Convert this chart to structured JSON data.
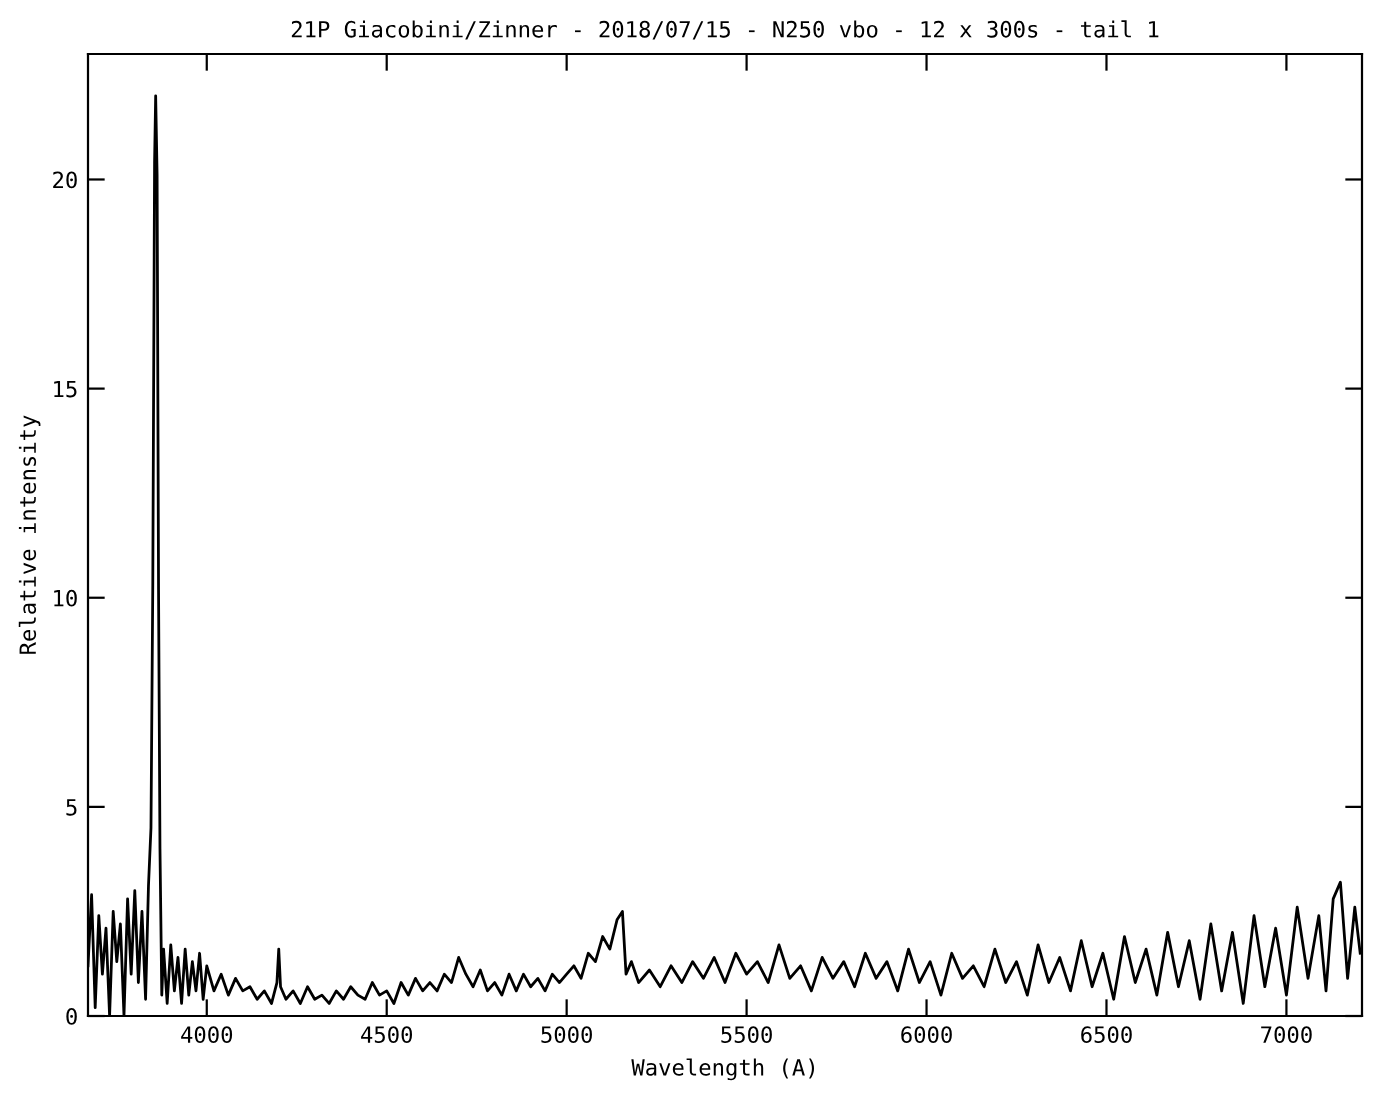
{
  "chart_data": {
    "type": "line",
    "title": "21P Giacobini/Zinner - 2018/07/15 - N250 vbo - 12 x 300s - tail 1",
    "xlabel": "Wavelength (A)",
    "ylabel": "Relative intensity",
    "x": [
      3670,
      3680,
      3690,
      3700,
      3710,
      3720,
      3730,
      3740,
      3750,
      3760,
      3770,
      3780,
      3790,
      3800,
      3810,
      3820,
      3830,
      3838,
      3845,
      3850,
      3855,
      3858,
      3862,
      3866,
      3870,
      3875,
      3880,
      3890,
      3900,
      3910,
      3920,
      3930,
      3940,
      3950,
      3960,
      3970,
      3980,
      3990,
      4000,
      4020,
      4040,
      4060,
      4080,
      4100,
      4120,
      4140,
      4160,
      4180,
      4195,
      4200,
      4205,
      4220,
      4240,
      4260,
      4280,
      4300,
      4320,
      4340,
      4360,
      4380,
      4400,
      4420,
      4440,
      4460,
      4480,
      4500,
      4520,
      4540,
      4560,
      4580,
      4600,
      4620,
      4640,
      4660,
      4680,
      4700,
      4720,
      4740,
      4760,
      4780,
      4800,
      4820,
      4840,
      4860,
      4880,
      4900,
      4920,
      4940,
      4960,
      4980,
      5000,
      5020,
      5040,
      5060,
      5080,
      5100,
      5120,
      5140,
      5155,
      5165,
      5180,
      5200,
      5230,
      5260,
      5290,
      5320,
      5350,
      5380,
      5410,
      5440,
      5470,
      5500,
      5530,
      5560,
      5590,
      5620,
      5650,
      5680,
      5710,
      5740,
      5770,
      5800,
      5830,
      5860,
      5890,
      5920,
      5950,
      5980,
      6010,
      6040,
      6070,
      6100,
      6130,
      6160,
      6190,
      6220,
      6250,
      6280,
      6310,
      6340,
      6370,
      6400,
      6430,
      6460,
      6490,
      6520,
      6550,
      6580,
      6610,
      6640,
      6670,
      6700,
      6730,
      6760,
      6790,
      6820,
      6850,
      6880,
      6910,
      6940,
      6970,
      7000,
      7030,
      7060,
      7090,
      7110,
      7130,
      7150,
      7170,
      7190,
      7205
    ],
    "values": [
      1.2,
      2.9,
      0.2,
      2.4,
      1.0,
      2.1,
      0.0,
      2.5,
      1.3,
      2.2,
      0.0,
      2.8,
      1.0,
      3.0,
      0.8,
      2.5,
      0.4,
      3.1,
      4.5,
      10.3,
      20.4,
      22.0,
      20.1,
      10.2,
      4.0,
      0.5,
      1.6,
      0.3,
      1.7,
      0.6,
      1.4,
      0.3,
      1.6,
      0.5,
      1.3,
      0.6,
      1.5,
      0.4,
      1.2,
      0.6,
      1.0,
      0.5,
      0.9,
      0.6,
      0.7,
      0.4,
      0.6,
      0.3,
      0.8,
      1.6,
      0.7,
      0.4,
      0.6,
      0.3,
      0.7,
      0.4,
      0.5,
      0.3,
      0.6,
      0.4,
      0.7,
      0.5,
      0.4,
      0.8,
      0.5,
      0.6,
      0.3,
      0.8,
      0.5,
      0.9,
      0.6,
      0.8,
      0.6,
      1.0,
      0.8,
      1.4,
      1.0,
      0.7,
      1.1,
      0.6,
      0.8,
      0.5,
      1.0,
      0.6,
      1.0,
      0.7,
      0.9,
      0.6,
      1.0,
      0.8,
      1.0,
      1.2,
      0.9,
      1.5,
      1.3,
      1.9,
      1.6,
      2.3,
      2.5,
      1.0,
      1.3,
      0.8,
      1.1,
      0.7,
      1.2,
      0.8,
      1.3,
      0.9,
      1.4,
      0.8,
      1.5,
      1.0,
      1.3,
      0.8,
      1.7,
      0.9,
      1.2,
      0.6,
      1.4,
      0.9,
      1.3,
      0.7,
      1.5,
      0.9,
      1.3,
      0.6,
      1.6,
      0.8,
      1.3,
      0.5,
      1.5,
      0.9,
      1.2,
      0.7,
      1.6,
      0.8,
      1.3,
      0.5,
      1.7,
      0.8,
      1.4,
      0.6,
      1.8,
      0.7,
      1.5,
      0.4,
      1.9,
      0.8,
      1.6,
      0.5,
      2.0,
      0.7,
      1.8,
      0.4,
      2.2,
      0.6,
      2.0,
      0.3,
      2.4,
      0.7,
      2.1,
      0.5,
      2.6,
      0.9,
      2.4,
      0.6,
      2.8,
      3.2,
      0.9,
      2.6,
      1.5
    ],
    "color": "#000000",
    "xlim": [
      3670,
      7210
    ],
    "ylim": [
      0,
      23
    ],
    "xticks": [
      4000,
      4500,
      5000,
      5500,
      6000,
      6500,
      7000
    ],
    "yticks": [
      0,
      5,
      10,
      15,
      20
    ],
    "grid": false,
    "legend": false
  }
}
